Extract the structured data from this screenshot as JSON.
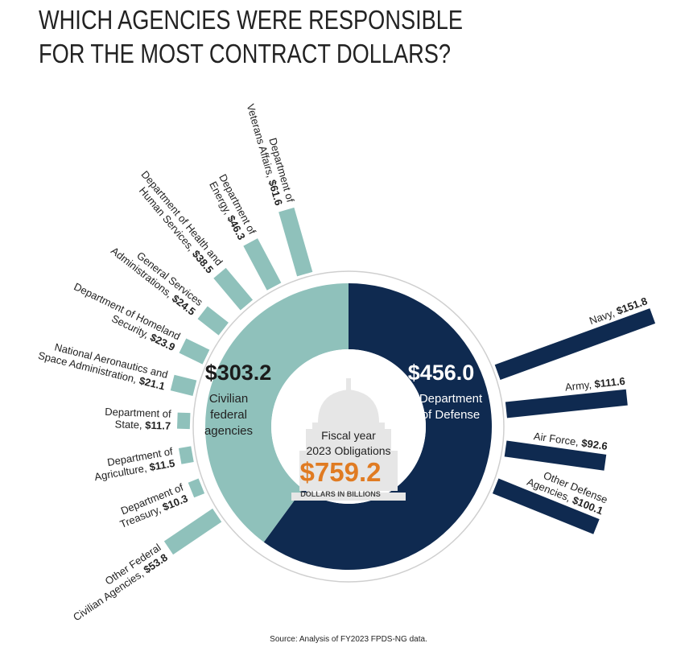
{
  "chart_data": {
    "type": "radial-donut",
    "title": [
      "WHICH AGENCIES WERE RESPONSIBLE",
      "FOR THE MOST CONTRACT DOLLARS?"
    ],
    "center_label": [
      "Fiscal year",
      "2023 Obligations"
    ],
    "total": 759.2,
    "total_label": "$759.2",
    "unit_label": "DOLLARS IN BILLIONS",
    "segments": [
      {
        "name": [
          "Department",
          "of Defense"
        ],
        "value": 456.0,
        "value_label": "$456.0",
        "color": "#0f2a50",
        "agencies": [
          {
            "label": [
              "Navy,"
            ],
            "value": 151.8,
            "value_label": "$151.8"
          },
          {
            "label": [
              "Army,"
            ],
            "value": 111.6,
            "value_label": "$111.6"
          },
          {
            "label": [
              "Air Force,"
            ],
            "value": 92.6,
            "value_label": "$92.6"
          },
          {
            "label": [
              "Other Defense",
              "Agencies,"
            ],
            "value": 100.1,
            "value_label": "$100.1"
          }
        ]
      },
      {
        "name": [
          "Civilian",
          "federal",
          "agencies"
        ],
        "value": 303.2,
        "value_label": "$303.2",
        "color": "#8fc1bb",
        "agencies": [
          {
            "label": [
              "Other Federal",
              "Civilian Agencies,"
            ],
            "value": 53.8,
            "value_label": "$53.8"
          },
          {
            "label": [
              "Department of",
              "Treasury,"
            ],
            "value": 10.3,
            "value_label": "$10.3"
          },
          {
            "label": [
              "Department of",
              "Agriculture,"
            ],
            "value": 11.5,
            "value_label": "$11.5"
          },
          {
            "label": [
              "Department of",
              "State,"
            ],
            "value": 11.7,
            "value_label": "$11.7"
          },
          {
            "label": [
              "National Aeronautics and",
              "Space Administration,"
            ],
            "value": 21.1,
            "value_label": "$21.1"
          },
          {
            "label": [
              "Department of Homeland",
              "Security,"
            ],
            "value": 23.9,
            "value_label": "$23.9"
          },
          {
            "label": [
              "General Services",
              "Administrations,"
            ],
            "value": 24.5,
            "value_label": "$24.5"
          },
          {
            "label": [
              "Department of Health and",
              "Human Services,"
            ],
            "value": 38.5,
            "value_label": "$38.5"
          },
          {
            "label": [
              "Department of",
              "Energy,"
            ],
            "value": 46.3,
            "value_label": "$46.3"
          },
          {
            "label": [
              "Department of",
              "Veterans Affairs,"
            ],
            "value": 61.6,
            "value_label": "$61.6"
          }
        ]
      }
    ],
    "source": "Source: Analysis of FY2023 FPDS-NG data."
  }
}
